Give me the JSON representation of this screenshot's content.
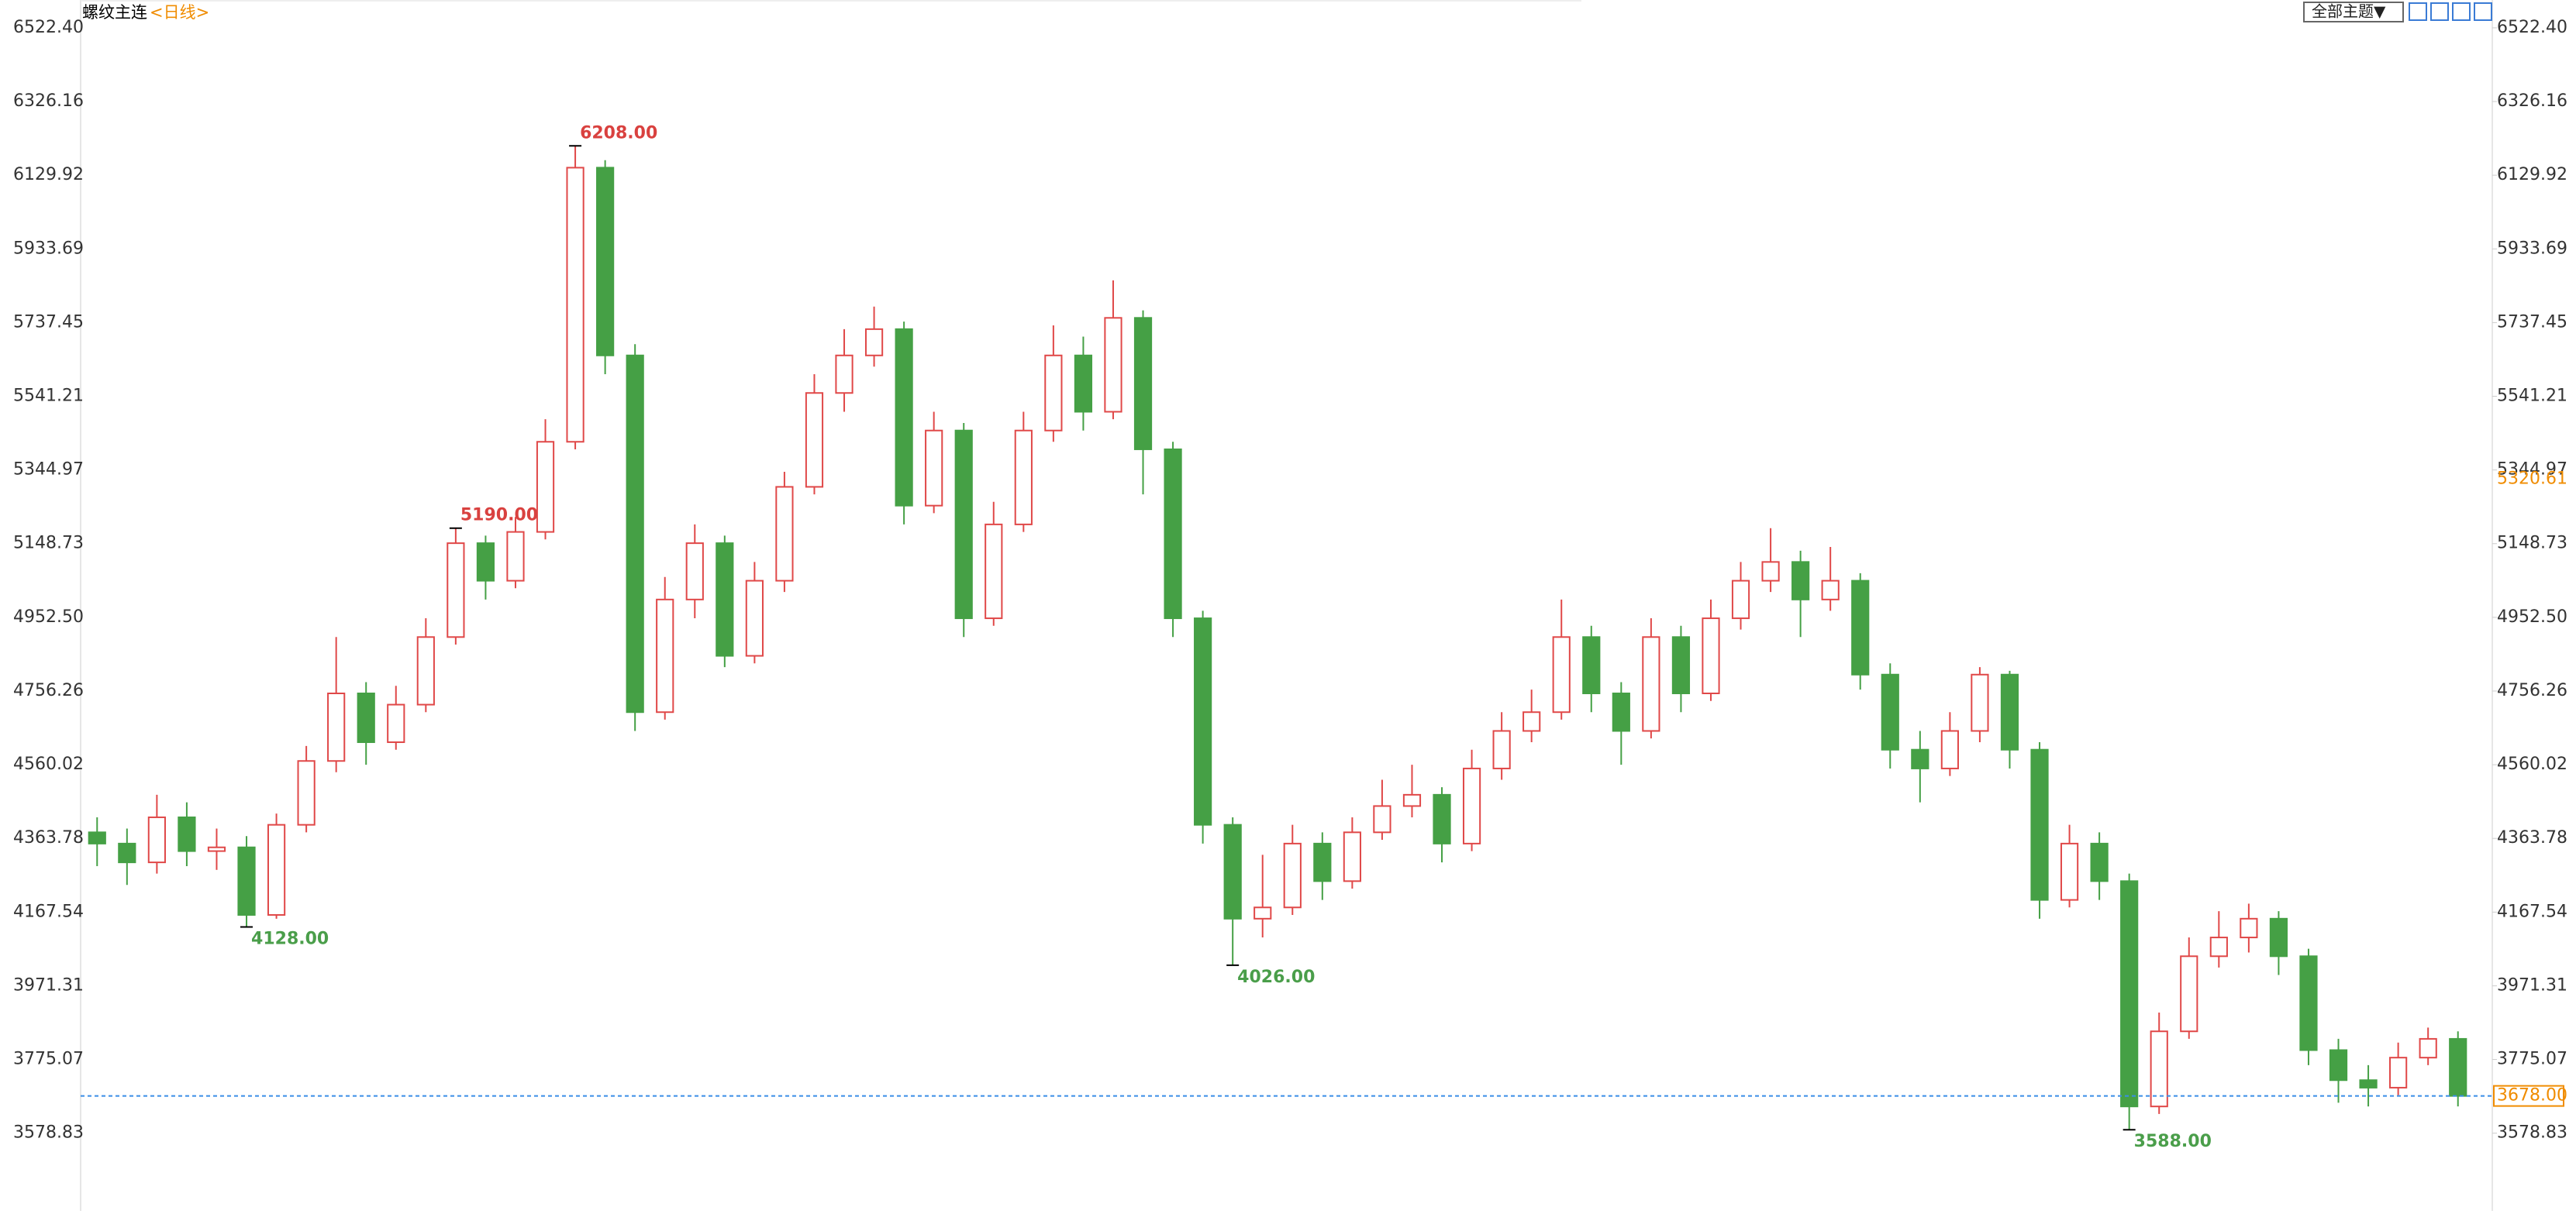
{
  "chart_data": {
    "type": "candlestick",
    "title": "螺纹主连",
    "period": "<日线>",
    "theme_button": "全部主题▼",
    "up_color": "#e04848",
    "down_color": "#45a045",
    "ylim": [
      3373.9,
      6596.5
    ],
    "yticks": [
      {
        "value": 6522.4,
        "label": "6522.40"
      },
      6326.16,
      6129.92,
      5933.69,
      5737.45,
      5541.21,
      5344.97,
      5148.73,
      {
        "value": 4952.5,
        "label": "4952.50"
      },
      4756.26,
      4560.02,
      4363.78,
      4167.54,
      3971.31,
      3775.07,
      3578.83
    ],
    "open": [
      4380,
      4350,
      4300,
      4420,
      4330,
      4340,
      4160,
      4400,
      4570,
      4750,
      4620,
      4720,
      4900,
      5150,
      5050,
      5180,
      5420,
      6150,
      5650,
      4700,
      5000,
      5150,
      4850,
      5050,
      5300,
      5550,
      5650,
      5720,
      5250,
      5450,
      4950,
      5200,
      5450,
      5650,
      5500,
      5750,
      5400,
      4950,
      4400,
      4150,
      4180,
      4350,
      4250,
      4380,
      4450,
      4480,
      4350,
      4550,
      4650,
      4700,
      4900,
      4750,
      4650,
      4900,
      4750,
      4950,
      5050,
      5100,
      5000,
      5050,
      4800,
      4600,
      4550,
      4650,
      4800,
      4600,
      4200,
      4350,
      4250,
      3650,
      3850,
      4050,
      4100,
      4150,
      4050,
      3800,
      3720,
      3700,
      3780,
      3830
    ],
    "high": [
      4420,
      4390,
      4480,
      4460,
      4390,
      4370,
      4430,
      4610,
      4900,
      4780,
      4770,
      4950,
      5190,
      5170,
      5220,
      5480,
      6208,
      6170,
      5680,
      5060,
      5200,
      5170,
      5100,
      5340,
      5600,
      5720,
      5780,
      5740,
      5500,
      5470,
      5260,
      5500,
      5730,
      5700,
      5850,
      5770,
      5420,
      4970,
      4420,
      4320,
      4400,
      4380,
      4420,
      4520,
      4560,
      4500,
      4600,
      4700,
      4760,
      5000,
      4930,
      4780,
      4950,
      4930,
      5000,
      5100,
      5190,
      5130,
      5140,
      5070,
      4830,
      4650,
      4700,
      4820,
      4810,
      4620,
      4400,
      4380,
      4270,
      3900,
      4100,
      4170,
      4190,
      4170,
      4070,
      3830,
      3760,
      3820,
      3860,
      3850
    ],
    "low": [
      4290,
      4240,
      4270,
      4290,
      4280,
      4128,
      4150,
      4380,
      4540,
      4560,
      4600,
      4700,
      4880,
      5000,
      5030,
      5160,
      5400,
      5600,
      4650,
      4680,
      4950,
      4820,
      4830,
      5020,
      5280,
      5500,
      5620,
      5200,
      5230,
      4900,
      4930,
      5180,
      5420,
      5450,
      5480,
      5280,
      4900,
      4350,
      4026,
      4100,
      4160,
      4200,
      4230,
      4360,
      4420,
      4300,
      4330,
      4520,
      4620,
      4680,
      4700,
      4560,
      4630,
      4700,
      4730,
      4920,
      5020,
      4900,
      4970,
      4760,
      4550,
      4460,
      4530,
      4620,
      4550,
      4150,
      4180,
      4200,
      3588,
      3630,
      3830,
      4020,
      4060,
      4000,
      3760,
      3660,
      3650,
      3680,
      3760,
      3650
    ],
    "close": [
      4350,
      4300,
      4420,
      4330,
      4340,
      4160,
      4400,
      4570,
      4750,
      4620,
      4720,
      4900,
      5150,
      5050,
      5180,
      5420,
      6150,
      5650,
      4700,
      5000,
      5150,
      4850,
      5050,
      5300,
      5550,
      5650,
      5720,
      5250,
      5450,
      4950,
      5200,
      5450,
      5650,
      5500,
      5750,
      5400,
      4950,
      4400,
      4150,
      4180,
      4350,
      4250,
      4380,
      4450,
      4480,
      4350,
      4550,
      4650,
      4700,
      4900,
      4750,
      4650,
      4900,
      4750,
      4950,
      5050,
      5100,
      5000,
      5050,
      4800,
      4600,
      4550,
      4650,
      4800,
      4600,
      4200,
      4350,
      4250,
      3650,
      3850,
      4050,
      4100,
      4150,
      4050,
      3800,
      3720,
      3700,
      3780,
      3830,
      3678
    ],
    "high_marks": [
      {
        "value": 6208,
        "label": "6208.00"
      },
      {
        "value": 5190,
        "label": "5190.00"
      }
    ],
    "low_marks": [
      {
        "value": 4128,
        "label": "4128.00"
      },
      {
        "value": 4026,
        "label": "4026.00"
      },
      {
        "value": 3588,
        "label": "3588.00"
      }
    ],
    "last_price": {
      "value": 3678,
      "label": "3678.00"
    },
    "marker_price": 5320.61
  }
}
